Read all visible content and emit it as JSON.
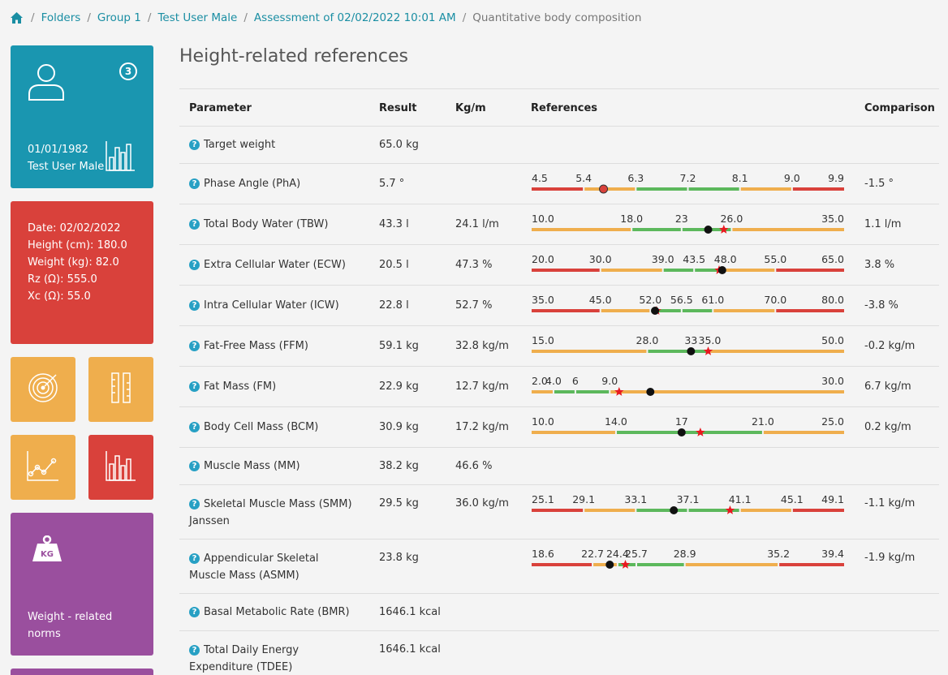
{
  "breadcrumb": {
    "items": [
      "Folders",
      "Group 1",
      "Test User Male",
      "Assessment of 02/02/2022 10:01 AM"
    ],
    "current": "Quantitative body composition"
  },
  "user_tile": {
    "badge": "3",
    "dob": "01/01/1982",
    "name": "Test User Male"
  },
  "info_tile": {
    "lines": [
      "Date: 02/02/2022",
      "Height (cm): 180.0",
      "Weight (kg): 82.0",
      "Rz (Ω): 555.0",
      "Xc (Ω): 55.0"
    ]
  },
  "weight_tile": {
    "label": "Weight - related norms"
  },
  "section_title": "Height-related references",
  "table": {
    "headers": {
      "parameter": "Parameter",
      "result": "Result",
      "kgm": "Kg/m",
      "references": "References",
      "comparison": "Comparison"
    },
    "rows": [
      {
        "param": "Target weight",
        "result": "65.0 kg",
        "kgm": "",
        "comparison": "",
        "ref": null
      },
      {
        "param": "Phase Angle (PhA)",
        "result": "5.7 °",
        "kgm": "",
        "comparison": "-1.5 °",
        "ref": {
          "ticks": [
            "4.5",
            "5.4",
            "6.3",
            "7.2",
            "8.1",
            "9.0",
            "9.9"
          ],
          "colors": [
            "#d9413b",
            "#efae4d",
            "#5cb85c",
            "#5cb85c",
            "#efae4d",
            "#d9413b"
          ],
          "marker": 0.23,
          "marker_type": "red-dot",
          "star": null
        }
      },
      {
        "param": "Total Body Water (TBW)",
        "result": "43.3 l",
        "kgm": "24.1 l/m",
        "comparison": "1.1 l/m",
        "ref": {
          "ticks": [
            "10.0",
            "18.0",
            "23",
            "26.0",
            "35.0"
          ],
          "tick_pos": [
            0,
            0.32,
            0.48,
            0.64,
            1
          ],
          "colors": [
            "#efae4d",
            "#5cb85c",
            "#5cb85c",
            "#efae4d"
          ],
          "marker": 0.565,
          "marker_type": "dot",
          "star": 0.615
        }
      },
      {
        "param": "Extra Cellular Water (ECW)",
        "result": "20.5 l",
        "kgm": "47.3 %",
        "comparison": "3.8 %",
        "ref": {
          "ticks": [
            "20.0",
            "30.0",
            "39.0",
            "43.5",
            "48.0",
            "55.0",
            "65.0"
          ],
          "tick_pos": [
            0,
            0.22,
            0.42,
            0.52,
            0.62,
            0.78,
            1
          ],
          "colors": [
            "#d9413b",
            "#efae4d",
            "#5cb85c",
            "#5cb85c",
            "#efae4d",
            "#d9413b"
          ],
          "marker": 0.61,
          "marker_type": "dot",
          "star": 0.6
        }
      },
      {
        "param": "Intra Cellular Water (ICW)",
        "result": "22.8 l",
        "kgm": "52.7 %",
        "comparison": "-3.8 %",
        "ref": {
          "ticks": [
            "35.0",
            "45.0",
            "52.0",
            "56.5",
            "61.0",
            "70.0",
            "80.0"
          ],
          "tick_pos": [
            0,
            0.22,
            0.38,
            0.48,
            0.58,
            0.78,
            1
          ],
          "colors": [
            "#d9413b",
            "#efae4d",
            "#5cb85c",
            "#5cb85c",
            "#efae4d",
            "#d9413b"
          ],
          "marker": 0.395,
          "marker_type": "dot",
          "star": 0.4
        }
      },
      {
        "param": "Fat-Free Mass (FFM)",
        "result": "59.1 kg",
        "kgm": "32.8 kg/m",
        "comparison": "-0.2 kg/m",
        "ref": {
          "ticks": [
            "15.0",
            "28.0",
            "33",
            "35.0",
            "50.0"
          ],
          "tick_pos": [
            0,
            0.37,
            0.51,
            0.57,
            1
          ],
          "colors": [
            "#efae4d",
            "#5cb85c",
            "#5cb85c",
            "#efae4d"
          ],
          "marker": 0.51,
          "marker_type": "dot",
          "star": 0.565
        }
      },
      {
        "param": "Fat Mass (FM)",
        "result": "22.9 kg",
        "kgm": "12.7 kg/m",
        "comparison": "6.7 kg/m",
        "ref": {
          "ticks": [
            "2.0",
            "4.0",
            "6",
            "9.0",
            "30.0"
          ],
          "tick_pos": [
            0,
            0.07,
            0.14,
            0.25,
            1
          ],
          "colors": [
            "#efae4d",
            "#5cb85c",
            "#5cb85c",
            "#efae4d"
          ],
          "marker": 0.38,
          "marker_type": "dot",
          "star": 0.28
        }
      },
      {
        "param": "Body Cell Mass (BCM)",
        "result": "30.9 kg",
        "kgm": "17.2 kg/m",
        "comparison": "0.2 kg/m",
        "ref": {
          "ticks": [
            "10.0",
            "14.0",
            "17",
            "21.0",
            "25.0"
          ],
          "tick_pos": [
            0,
            0.27,
            0.48,
            0.74,
            1
          ],
          "colors": [
            "#efae4d",
            "#5cb85c",
            "#5cb85c",
            "#efae4d"
          ],
          "marker": 0.48,
          "marker_type": "dot",
          "star": 0.54
        }
      },
      {
        "param": "Muscle Mass (MM)",
        "result": "38.2 kg",
        "kgm": "46.6 %",
        "comparison": "",
        "ref": null
      },
      {
        "param": "Skeletal Muscle Mass (SMM) Janssen",
        "result": "29.5 kg",
        "kgm": "36.0 kg/m",
        "comparison": "-1.1 kg/m",
        "ref": {
          "ticks": [
            "25.1",
            "29.1",
            "33.1",
            "37.1",
            "41.1",
            "45.1",
            "49.1"
          ],
          "colors": [
            "#d9413b",
            "#efae4d",
            "#5cb85c",
            "#5cb85c",
            "#efae4d",
            "#d9413b"
          ],
          "marker": 0.455,
          "marker_type": "dot",
          "star": 0.635
        }
      },
      {
        "param": "Appendicular Skeletal Muscle Mass (ASMM)",
        "result": "23.8 kg",
        "kgm": "",
        "comparison": "-1.9 kg/m",
        "ref": {
          "ticks": [
            "18.6",
            "22.7",
            "24.4",
            "25.7",
            "28.9",
            "35.2",
            "39.4"
          ],
          "tick_pos": [
            0,
            0.195,
            0.275,
            0.335,
            0.49,
            0.79,
            1
          ],
          "colors": [
            "#d9413b",
            "#efae4d",
            "#5cb85c",
            "#5cb85c",
            "#efae4d",
            "#d9413b"
          ],
          "marker": 0.25,
          "marker_type": "dot",
          "star": 0.3
        }
      },
      {
        "param": "Basal Metabolic Rate (BMR)",
        "result": "1646.1 kcal",
        "kgm": "",
        "comparison": "",
        "ref": null
      },
      {
        "param": "Total Daily Energy Expenditure (TDEE)",
        "result": "1646.1 kcal",
        "kgm": "",
        "comparison": "",
        "ref": null
      }
    ]
  }
}
